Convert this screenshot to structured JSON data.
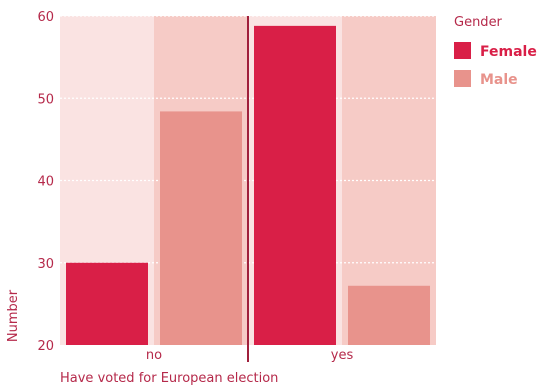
{
  "chart_data": {
    "type": "bar",
    "categories": [
      "no",
      "yes"
    ],
    "series": [
      {
        "name": "Female",
        "values": [
          30,
          58.8
        ]
      },
      {
        "name": "Male",
        "values": [
          48.4,
          27.2
        ]
      }
    ],
    "xlabel": "Have voted for European election",
    "ylabel": "Number",
    "ylim": [
      20,
      60
    ],
    "yticks": [
      20,
      30,
      40,
      50,
      60
    ],
    "grid": true,
    "legend": {
      "title": "Gender",
      "position": "right"
    }
  },
  "colors": {
    "female": "#d91f47",
    "male": "#e8938c",
    "panel_light": "#fae3e2",
    "panel_dark": "#f6cbc6",
    "text": "#b5294a",
    "divider": "#a0203c"
  }
}
